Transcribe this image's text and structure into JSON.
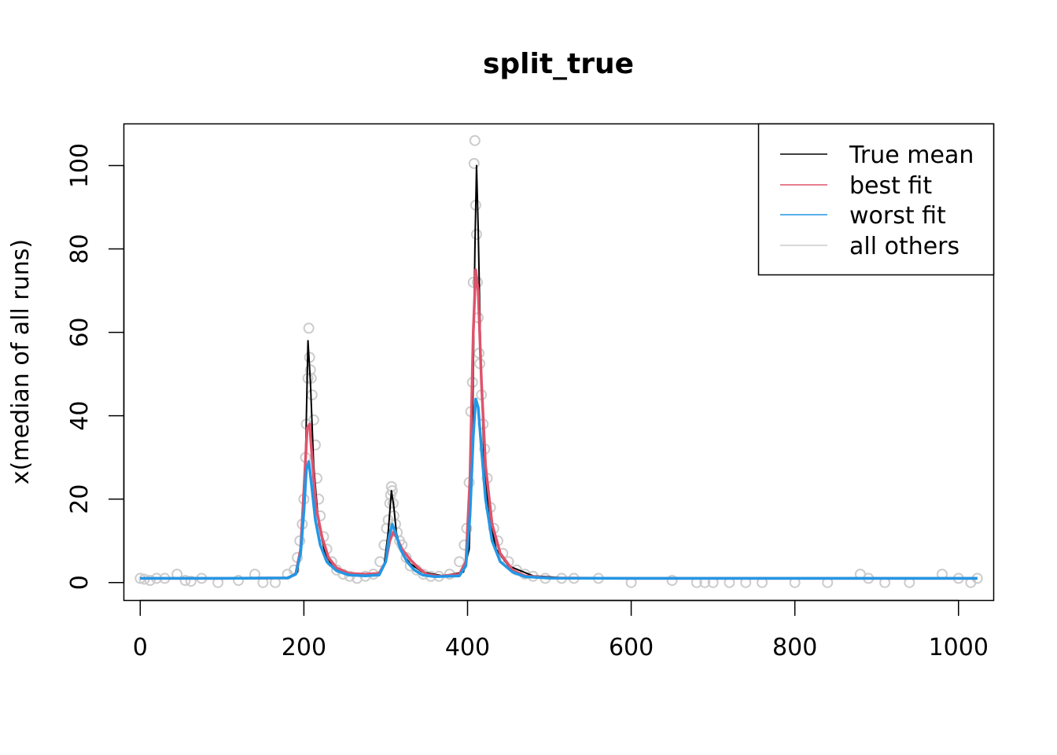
{
  "chart_data": {
    "type": "line",
    "title": "split_true",
    "xlabel": "",
    "ylabel": "x(median of all runs)",
    "xlim": [
      -20,
      1043
    ],
    "ylim": [
      -4.3,
      110
    ],
    "x_ticks": [
      0,
      200,
      400,
      600,
      800,
      1000
    ],
    "y_ticks": [
      0,
      20,
      40,
      60,
      80,
      100
    ],
    "x_tick_labels": [
      "0",
      "200",
      "400",
      "600",
      "800",
      "1000"
    ],
    "y_tick_labels": [
      "0",
      "20",
      "40",
      "60",
      "80",
      "100"
    ],
    "grid": false,
    "legend_position": "top-right",
    "legend": [
      {
        "label": "True mean",
        "color": "#000000"
      },
      {
        "label": "best fit",
        "color": "#DF536B"
      },
      {
        "label": "worst fit",
        "color": "#2297E6"
      },
      {
        "label": "all others",
        "color": "#CCCCCC"
      }
    ],
    "series": [
      {
        "name": "True mean",
        "color": "#000000",
        "x": [
          0,
          100,
          180,
          192,
          198,
          202,
          205,
          208,
          212,
          218,
          226,
          236,
          250,
          270,
          290,
          298,
          303,
          307,
          310,
          313,
          320,
          330,
          345,
          370,
          395,
          402,
          406,
          409,
          411,
          413,
          416,
          420,
          426,
          435,
          450,
          480,
          520,
          600,
          800,
          1023
        ],
        "y": [
          1,
          1,
          1.1,
          2.5,
          10,
          30,
          58,
          48,
          28,
          14,
          7,
          3.5,
          2,
          1.8,
          2,
          4,
          12,
          22,
          18,
          12,
          7,
          4.5,
          2.5,
          1.6,
          2.5,
          8,
          35,
          80,
          100,
          85,
          55,
          30,
          16,
          8,
          4,
          1.6,
          1.1,
          1,
          1,
          1
        ]
      },
      {
        "name": "best fit",
        "color": "#DF536B",
        "x": [
          0,
          100,
          180,
          190,
          196,
          200,
          204,
          207,
          210,
          215,
          222,
          230,
          240,
          255,
          275,
          292,
          300,
          305,
          309,
          313,
          320,
          330,
          340,
          350,
          365,
          390,
          398,
          403,
          407,
          410,
          413,
          417,
          422,
          430,
          440,
          455,
          470,
          500,
          600,
          800,
          1023
        ],
        "y": [
          1,
          1,
          1.1,
          2,
          8,
          22,
          37,
          38,
          30,
          18,
          11,
          6,
          3.5,
          2.2,
          2,
          2.2,
          5,
          10,
          12,
          11,
          8,
          5.5,
          3.5,
          2,
          1.5,
          2,
          5,
          25,
          60,
          75,
          70,
          48,
          28,
          14,
          7,
          3,
          1.6,
          1.1,
          1,
          1,
          1
        ]
      },
      {
        "name": "worst fit",
        "color": "#2297E6",
        "x": [
          0,
          100,
          180,
          190,
          196,
          200,
          203,
          206,
          209,
          214,
          220,
          228,
          240,
          255,
          275,
          292,
          300,
          304,
          308,
          312,
          318,
          326,
          335,
          345,
          360,
          390,
          398,
          403,
          407,
          410,
          413,
          417,
          422,
          430,
          440,
          455,
          470,
          500,
          600,
          800,
          1023
        ],
        "y": [
          1,
          1,
          1.1,
          2,
          7,
          17,
          27,
          29,
          24,
          15,
          9,
          5,
          2.8,
          1.8,
          1.6,
          1.8,
          5,
          11,
          14,
          12,
          8,
          5,
          3,
          1.8,
          1.4,
          1.6,
          4,
          16,
          35,
          44,
          42,
          32,
          20,
          10,
          5,
          2.5,
          1.4,
          1.05,
          1,
          1,
          1
        ]
      }
    ],
    "scatter_all_others": {
      "name": "all others",
      "color": "#CCCCCC",
      "x": [
        0,
        5,
        12,
        20,
        30,
        45,
        55,
        62,
        75,
        95,
        120,
        140,
        150,
        165,
        180,
        188,
        192,
        195,
        198,
        200,
        202,
        203,
        205,
        206,
        207,
        208,
        209,
        210,
        212,
        214,
        216,
        218,
        220,
        224,
        228,
        234,
        240,
        248,
        256,
        265,
        275,
        285,
        293,
        298,
        301,
        303,
        305,
        306,
        307,
        308,
        309,
        310,
        312,
        314,
        317,
        320,
        325,
        330,
        338,
        346,
        355,
        365,
        378,
        390,
        396,
        399,
        402,
        404,
        406,
        407,
        408,
        409,
        410,
        411,
        412,
        413,
        414,
        415,
        417,
        419,
        421,
        424,
        428,
        432,
        437,
        443,
        450,
        460,
        470,
        480,
        495,
        515,
        530,
        560,
        600,
        650,
        680,
        690,
        700,
        720,
        740,
        760,
        800,
        840,
        880,
        890,
        910,
        940,
        980,
        1000,
        1015,
        1023
      ],
      "y": [
        1,
        0.8,
        0.5,
        1,
        1,
        2,
        0.5,
        0.3,
        1,
        0,
        0.5,
        2,
        0,
        0,
        2,
        3,
        6,
        10,
        14,
        20,
        30,
        38,
        49,
        61,
        54,
        51,
        49,
        45,
        39,
        33,
        25,
        20,
        16,
        11,
        8,
        5,
        3,
        2,
        1.5,
        1,
        1.5,
        2,
        5,
        9,
        13,
        15,
        19,
        21,
        23,
        22,
        19,
        16,
        14,
        12,
        10,
        9,
        6,
        4,
        3,
        2,
        1.5,
        1.5,
        2,
        5,
        9,
        13,
        24,
        41,
        48,
        72,
        100.5,
        106,
        90.5,
        83.5,
        72,
        63.5,
        55,
        52.5,
        45,
        38,
        32,
        25,
        18,
        13,
        10,
        7,
        5,
        3,
        2,
        1.5,
        1,
        1,
        1,
        1,
        0,
        0.5,
        0,
        0,
        0,
        0,
        0,
        0,
        0,
        0,
        2,
        1,
        0,
        0,
        2,
        1,
        0,
        1
      ]
    }
  }
}
